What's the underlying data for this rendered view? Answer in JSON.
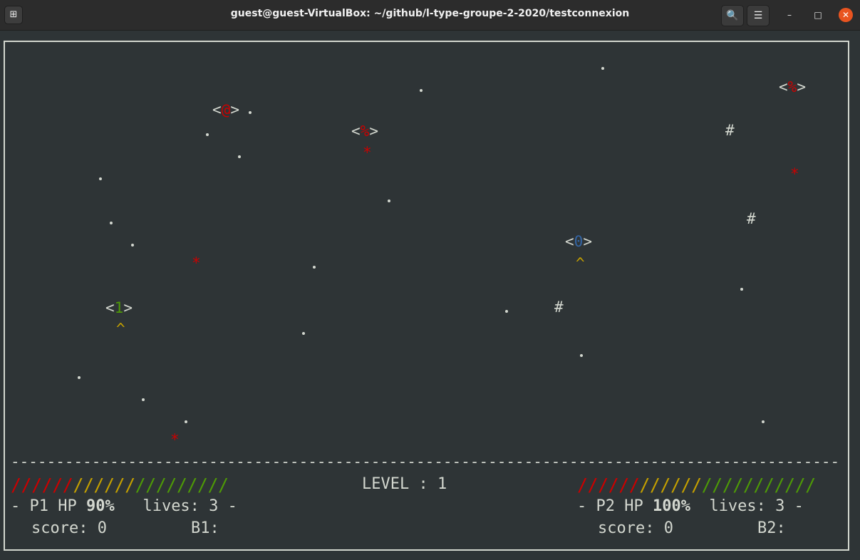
{
  "window": {
    "title": "guest@guest-VirtualBox: ~/github/l-type-groupe-2-2020/testconnexion",
    "new_tab_glyph": "⊞",
    "search_glyph": "🔍",
    "menu_glyph": "☰",
    "minimize_glyph": "–",
    "maximize_glyph": "□",
    "close_glyph": "✕"
  },
  "game": {
    "enemy_open": "<",
    "enemy_core": "%",
    "enemy_close": ">",
    "boss_core": "@",
    "p1_core": "1",
    "p2_core": "0",
    "ship_nose": "^",
    "obstacle": "#",
    "projectile": "*",
    "separator": "--------------------------------------------------------------------------------------------"
  },
  "hud": {
    "level_text": "LEVEL : 1",
    "p1": {
      "hp_fraction": 0.9,
      "bar_red": "//////",
      "bar_yellow": "//////",
      "bar_green": "/////////",
      "prefix": "- P1 HP ",
      "hp": "90%",
      "lives": "   lives: 3 -",
      "score": "score: 0",
      "bonus": "B1:"
    },
    "p2": {
      "hp_fraction": 1.0,
      "bar_red": "//////",
      "bar_yellow": "//////",
      "bar_green": "///////////",
      "prefix": "- P2 HP ",
      "hp": "100%",
      "lives": "  lives: 3 -",
      "score": "score: 0",
      "bonus": "B2:"
    }
  },
  "colors": {
    "background": "#2e3436",
    "enemy_core": "#cc0000",
    "ship_nose": "#c4a000",
    "p1": "#4e9a06",
    "p2": "#3465a4"
  }
}
